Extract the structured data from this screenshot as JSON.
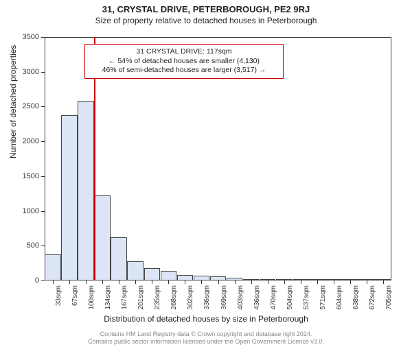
{
  "title_main": "31, CRYSTAL DRIVE, PETERBOROUGH, PE2 9RJ",
  "title_sub": "Size of property relative to detached houses in Peterborough",
  "chart": {
    "type": "bar",
    "y_label": "Number of detached properties",
    "x_label": "Distribution of detached houses by size in Peterborough",
    "ylim": [
      0,
      3500
    ],
    "y_ticks": [
      0,
      500,
      1000,
      1500,
      2000,
      2500,
      3000,
      3500
    ],
    "x_categories": [
      "33sqm",
      "67sqm",
      "100sqm",
      "134sqm",
      "167sqm",
      "201sqm",
      "235sqm",
      "268sqm",
      "302sqm",
      "336sqm",
      "369sqm",
      "403sqm",
      "436sqm",
      "470sqm",
      "504sqm",
      "537sqm",
      "571sqm",
      "604sqm",
      "638sqm",
      "672sqm",
      "705sqm"
    ],
    "values": [
      370,
      2380,
      2580,
      1220,
      620,
      280,
      180,
      140,
      80,
      70,
      55,
      40,
      20,
      10,
      10,
      8,
      5,
      5,
      3,
      2,
      2
    ],
    "bar_fill": "#dbe5f5",
    "bar_border": "#444444",
    "axis_color": "#333333",
    "background_color": "#ffffff",
    "marker": {
      "color": "#cc0000",
      "x_value_sqm": 117,
      "line1": "31 CRYSTAL DRIVE: 117sqm",
      "line2": "← 54% of detached houses are smaller (4,130)",
      "line3": "46% of semi-detached houses are larger (3,517) →"
    }
  },
  "footer": {
    "line1": "Contains HM Land Registry data © Crown copyright and database right 2024.",
    "line2": "Contains public sector information licensed under the Open Government Licence v3.0."
  }
}
